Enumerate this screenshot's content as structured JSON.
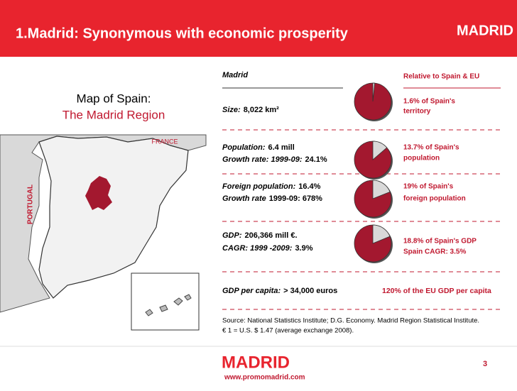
{
  "header": {
    "title": "1.Madrid: Synonymous with economic prosperity",
    "logo": "MADRID"
  },
  "map": {
    "caption": [
      "Map of Spain:",
      "The Madrid Region"
    ],
    "france": "FRANCE",
    "portugal": "PORTUGAL"
  },
  "table": {
    "left_heading": "Madrid",
    "right_heading": "Relative to Spain & EU",
    "rows": [
      {
        "lines": [
          {
            "label": "Size:",
            "value": "8,022 km²"
          }
        ],
        "relative": [
          "1.6% of Spain's",
          "territory"
        ],
        "share": 1.6
      },
      {
        "lines": [
          {
            "label": "Population:",
            "value": "6.4 mill"
          },
          {
            "label": "Growth rate: 1999-09:",
            "value": "24.1%"
          }
        ],
        "relative": [
          "13.7% of Spain's",
          "population"
        ],
        "share": 13.7
      },
      {
        "lines": [
          {
            "label": "Foreign population:",
            "value": "16.4%"
          },
          {
            "label": "Growth rate",
            "value": "1999-09:  678%"
          }
        ],
        "relative": [
          "19% of Spain's",
          "foreign population"
        ],
        "share": 19
      },
      {
        "lines": [
          {
            "label": "GDP:",
            "value": "206,366 mill €."
          },
          {
            "label": "CAGR: 1999 -2009:",
            "value": "3.9%"
          }
        ],
        "relative": [
          "18.8% of Spain's GDP",
          "Spain CAGR: 3.5%"
        ],
        "share": 18.8
      },
      {
        "lines": [
          {
            "label": "GDP per capita:",
            "value": "> 34,000 euros"
          }
        ],
        "relative": [
          "120% of the EU GDP per capita"
        ]
      }
    ]
  },
  "source": [
    "Source: National Statistics Institute; D.G. Economy. Madrid Region Statistical Institute.",
    "€ 1 = U.S. $ 1.47 (average exchange 2008)."
  ],
  "footer": {
    "logo": "MADRID",
    "url": "www.promomadrid.com",
    "page": "3"
  }
}
